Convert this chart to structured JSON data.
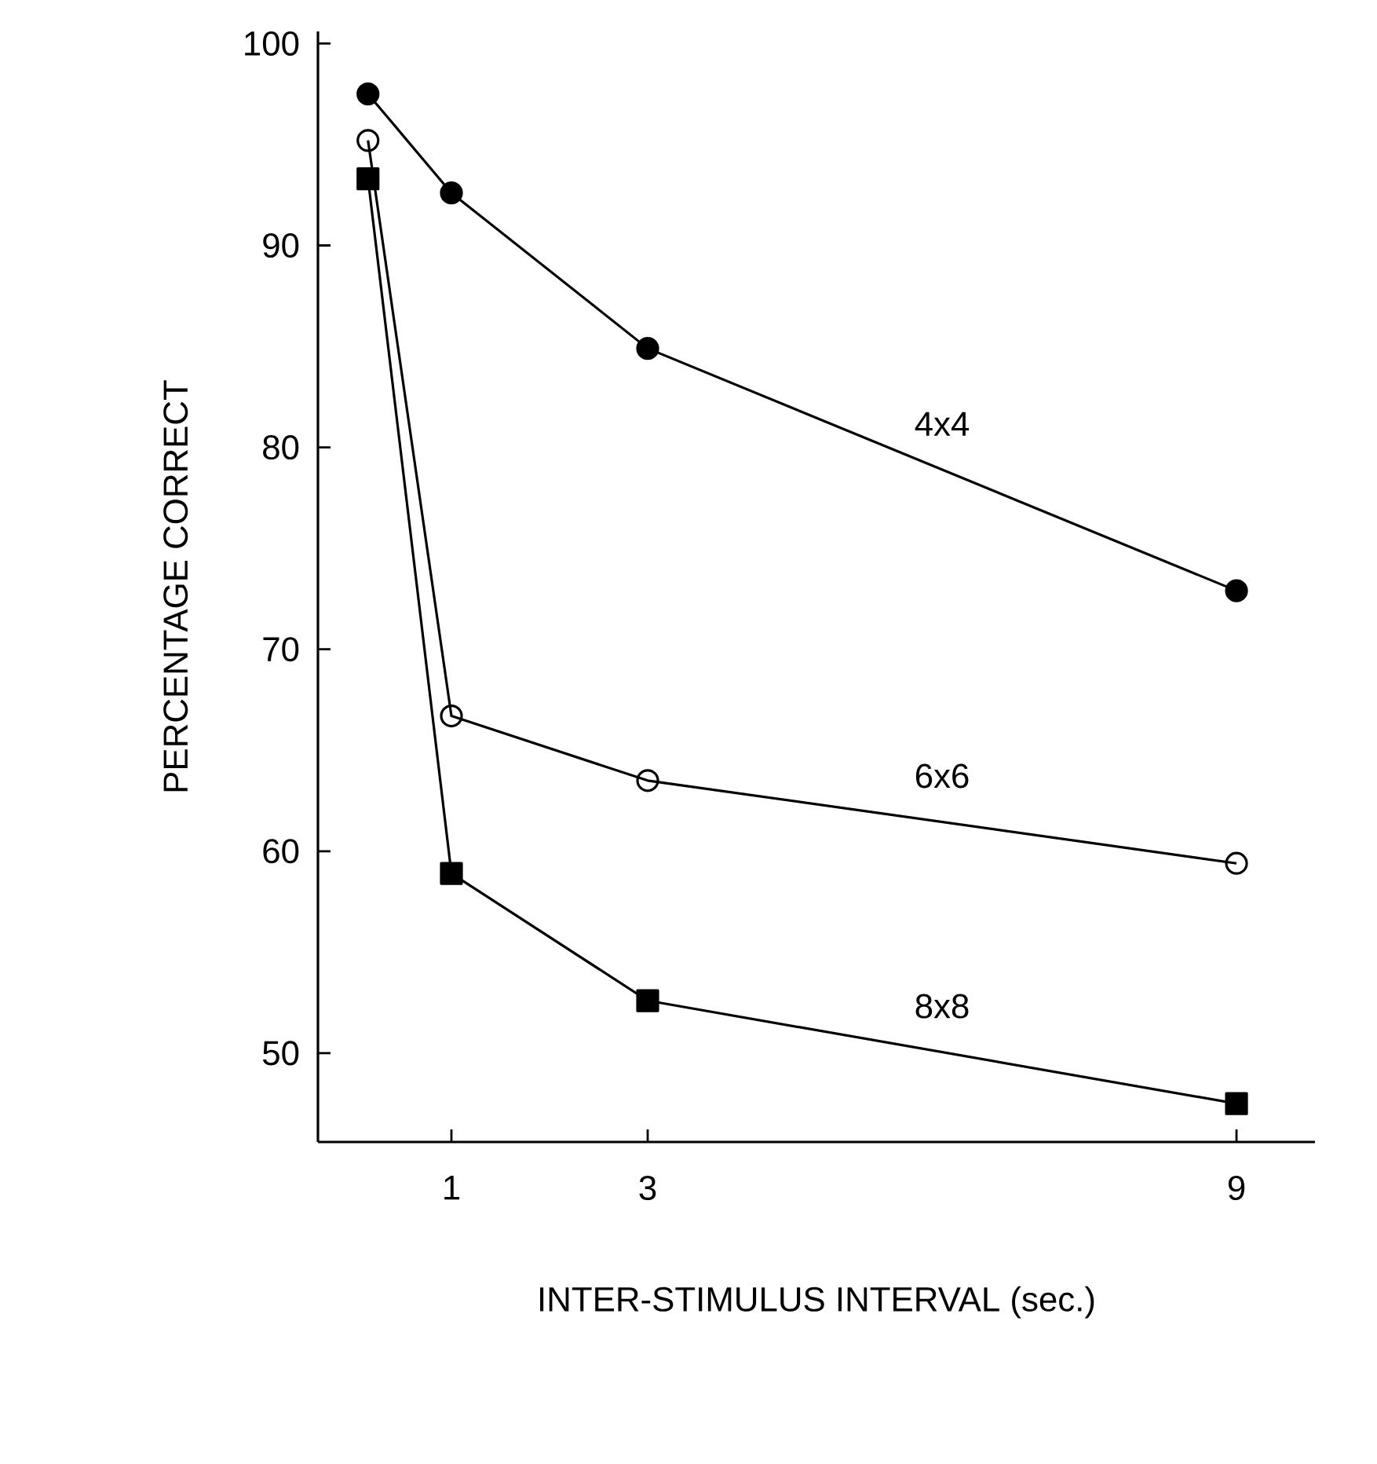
{
  "chart_data": {
    "type": "line",
    "xlabel": "INTER-STIMULUS INTERVAL (sec.)",
    "ylabel": "PERCENTAGE CORRECT",
    "xlim": [
      -0.36,
      9.8
    ],
    "ylim": [
      45.6,
      100.6
    ],
    "xticks": [
      1,
      3,
      9
    ],
    "yticks": [
      50,
      60,
      70,
      80,
      90,
      100
    ],
    "grid": false,
    "line_style": "solid",
    "series": [
      {
        "name": "4x4",
        "color": "#000000",
        "marker": "circle",
        "x": [
          0.15,
          1,
          3,
          9
        ],
        "values": [
          97.5,
          92.6,
          84.9,
          72.9
        ]
      },
      {
        "name": "6x6",
        "color": "#000000",
        "marker": "circle open",
        "x": [
          0.15,
          1,
          3,
          9
        ],
        "values": [
          95.2,
          66.7,
          63.5,
          59.4
        ]
      },
      {
        "name": "8x8",
        "color": "#000000",
        "marker": "square",
        "x": [
          0.15,
          1,
          3,
          9
        ],
        "values": [
          93.3,
          58.9,
          52.6,
          47.5
        ]
      }
    ]
  }
}
